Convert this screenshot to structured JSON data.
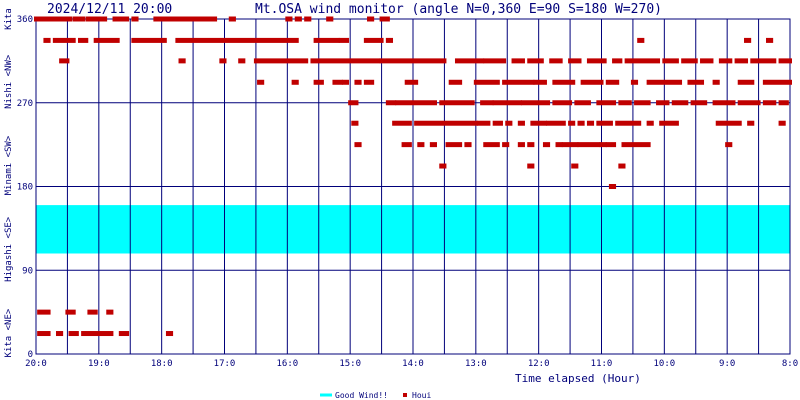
{
  "chart_data": {
    "type": "scatter",
    "timestamp": "2024/12/11 20:00",
    "title": "Mt.OSA wind monitor (angle N=0,360 E=90 S=180 W=270)",
    "xlabel": "Time elapsed (Hour)",
    "xlim": [
      0,
      12
    ],
    "ylim": [
      0,
      360
    ],
    "grid": true,
    "x_ticks": [
      {
        "value": 0,
        "label": "20:0"
      },
      {
        "value": 1,
        "label": "19:0"
      },
      {
        "value": 2,
        "label": "18:0"
      },
      {
        "value": 3,
        "label": "17:0"
      },
      {
        "value": 4,
        "label": "16:0"
      },
      {
        "value": 5,
        "label": "15:0"
      },
      {
        "value": 6,
        "label": "14:0"
      },
      {
        "value": 7,
        "label": "13:0"
      },
      {
        "value": 8,
        "label": "12:0"
      },
      {
        "value": 9,
        "label": "11:0"
      },
      {
        "value": 10,
        "label": "10:0"
      },
      {
        "value": 11,
        "label": "9:0"
      },
      {
        "value": 12,
        "label": "8:0"
      }
    ],
    "y_ticks": [
      {
        "value": 0,
        "label": "0"
      },
      {
        "value": 90,
        "label": "90"
      },
      {
        "value": 180,
        "label": "180"
      },
      {
        "value": 270,
        "label": "270"
      },
      {
        "value": 360,
        "label": "360"
      }
    ],
    "y_direction_labels": [
      {
        "value": 22.5,
        "label": "Kita <NE>"
      },
      {
        "value": 112.5,
        "label": "Higashi <SE>"
      },
      {
        "value": 202.5,
        "label": "Minami <SW>"
      },
      {
        "value": 292.5,
        "label": "Nishi <NW>"
      },
      {
        "value": 360,
        "label": "Kita"
      }
    ],
    "good_wind_band": {
      "name": "Good Wind!!",
      "from": 108,
      "to": 160,
      "color": "#00ffff"
    },
    "legend": {
      "placement": "bottom-center",
      "entries": [
        {
          "label": "Good Wind!!",
          "color": "#00ffff",
          "marker": "line"
        },
        {
          "label": "Houi",
          "color": "#c00000",
          "marker": "square"
        }
      ]
    },
    "colors": {
      "frame": "#00007a",
      "grid": "#00007a",
      "points": "#c00000",
      "text": "#00007a"
    },
    "series": [
      {
        "name": "Houi",
        "segments": [
          {
            "x": [
              0.0,
              0.55
            ],
            "y": 360
          },
          {
            "x": [
              0.62,
              0.75
            ],
            "y": 360
          },
          {
            "x": [
              0.82,
              1.1
            ],
            "y": 360
          },
          {
            "x": [
              1.25,
              1.3
            ],
            "y": 360
          },
          {
            "x": [
              1.35,
              1.45
            ],
            "y": 360
          },
          {
            "x": [
              1.55,
              1.6
            ],
            "y": 360
          },
          {
            "x": [
              1.9,
              2.85
            ],
            "y": 360
          },
          {
            "x": [
              3.1,
              3.15
            ],
            "y": 360
          },
          {
            "x": [
              4.0,
              4.05
            ],
            "y": 360
          },
          {
            "x": [
              4.15,
              4.2
            ],
            "y": 360
          },
          {
            "x": [
              4.3,
              4.35
            ],
            "y": 360
          },
          {
            "x": [
              4.65,
              4.7
            ],
            "y": 360
          },
          {
            "x": [
              5.3,
              5.35
            ],
            "y": 360
          },
          {
            "x": [
              5.5,
              5.6
            ],
            "y": 360
          },
          {
            "x": [
              0.15,
              0.2
            ],
            "y": 337
          },
          {
            "x": [
              0.3,
              0.6
            ],
            "y": 337
          },
          {
            "x": [
              0.7,
              0.8
            ],
            "y": 337
          },
          {
            "x": [
              0.95,
              1.3
            ],
            "y": 337
          },
          {
            "x": [
              1.55,
              2.05
            ],
            "y": 337
          },
          {
            "x": [
              2.25,
              4.15
            ],
            "y": 337
          },
          {
            "x": [
              4.45,
              4.8
            ],
            "y": 337
          },
          {
            "x": [
              4.85,
              4.95
            ],
            "y": 337
          },
          {
            "x": [
              5.25,
              5.5
            ],
            "y": 337
          },
          {
            "x": [
              5.6,
              5.65
            ],
            "y": 337
          },
          {
            "x": [
              9.6,
              9.65
            ],
            "y": 337
          },
          {
            "x": [
              11.3,
              11.35
            ],
            "y": 337
          },
          {
            "x": [
              11.65,
              11.7
            ],
            "y": 337
          },
          {
            "x": [
              0.4,
              0.5
            ],
            "y": 315
          },
          {
            "x": [
              2.3,
              2.35
            ],
            "y": 315
          },
          {
            "x": [
              2.95,
              3.0
            ],
            "y": 315
          },
          {
            "x": [
              3.25,
              3.3
            ],
            "y": 315
          },
          {
            "x": [
              3.5,
              4.3
            ],
            "y": 315
          },
          {
            "x": [
              4.4,
              5.45
            ],
            "y": 315
          },
          {
            "x": [
              5.5,
              6.5
            ],
            "y": 315
          },
          {
            "x": [
              6.7,
              7.1
            ],
            "y": 315
          },
          {
            "x": [
              7.15,
              7.45
            ],
            "y": 315
          },
          {
            "x": [
              7.6,
              7.75
            ],
            "y": 315
          },
          {
            "x": [
              7.85,
              8.05
            ],
            "y": 315
          },
          {
            "x": [
              8.2,
              8.35
            ],
            "y": 315
          },
          {
            "x": [
              8.5,
              8.65
            ],
            "y": 315
          },
          {
            "x": [
              8.8,
              9.05
            ],
            "y": 315
          },
          {
            "x": [
              9.2,
              9.3
            ],
            "y": 315
          },
          {
            "x": [
              9.4,
              9.9
            ],
            "y": 315
          },
          {
            "x": [
              10.0,
              10.2
            ],
            "y": 315
          },
          {
            "x": [
              10.3,
              10.5
            ],
            "y": 315
          },
          {
            "x": [
              10.6,
              10.75
            ],
            "y": 315
          },
          {
            "x": [
              10.9,
              11.05
            ],
            "y": 315
          },
          {
            "x": [
              11.15,
              11.3
            ],
            "y": 315
          },
          {
            "x": [
              11.4,
              11.75
            ],
            "y": 315
          },
          {
            "x": [
              11.85,
              12.0
            ],
            "y": 315
          },
          {
            "x": [
              3.55,
              3.6
            ],
            "y": 292
          },
          {
            "x": [
              4.1,
              4.15
            ],
            "y": 292
          },
          {
            "x": [
              4.45,
              4.55
            ],
            "y": 292
          },
          {
            "x": [
              4.75,
              4.85
            ],
            "y": 292
          },
          {
            "x": [
              4.9,
              4.95
            ],
            "y": 292
          },
          {
            "x": [
              5.1,
              5.15
            ],
            "y": 292
          },
          {
            "x": [
              5.25,
              5.35
            ],
            "y": 292
          },
          {
            "x": [
              5.9,
              6.05
            ],
            "y": 292
          },
          {
            "x": [
              6.6,
              6.75
            ],
            "y": 292
          },
          {
            "x": [
              7.0,
              7.35
            ],
            "y": 292
          },
          {
            "x": [
              7.45,
              7.9
            ],
            "y": 292
          },
          {
            "x": [
              7.95,
              8.1
            ],
            "y": 292
          },
          {
            "x": [
              8.25,
              8.55
            ],
            "y": 292
          },
          {
            "x": [
              8.7,
              9.0
            ],
            "y": 292
          },
          {
            "x": [
              9.1,
              9.25
            ],
            "y": 292
          },
          {
            "x": [
              9.5,
              9.55
            ],
            "y": 292
          },
          {
            "x": [
              9.75,
              10.25
            ],
            "y": 292
          },
          {
            "x": [
              10.4,
              10.6
            ],
            "y": 292
          },
          {
            "x": [
              10.8,
              10.85
            ],
            "y": 292
          },
          {
            "x": [
              11.2,
              11.4
            ],
            "y": 292
          },
          {
            "x": [
              11.6,
              12.0
            ],
            "y": 292
          },
          {
            "x": [
              5.0,
              5.1
            ],
            "y": 270
          },
          {
            "x": [
              5.6,
              5.7
            ],
            "y": 270
          },
          {
            "x": [
              5.75,
              6.35
            ],
            "y": 270
          },
          {
            "x": [
              6.45,
              6.95
            ],
            "y": 270
          },
          {
            "x": [
              7.1,
              7.25
            ],
            "y": 270
          },
          {
            "x": [
              7.3,
              7.7
            ],
            "y": 270
          },
          {
            "x": [
              7.75,
              8.15
            ],
            "y": 270
          },
          {
            "x": [
              8.25,
              8.5
            ],
            "y": 270
          },
          {
            "x": [
              8.6,
              8.8
            ],
            "y": 270
          },
          {
            "x": [
              8.95,
              9.2
            ],
            "y": 270
          },
          {
            "x": [
              9.3,
              9.45
            ],
            "y": 270
          },
          {
            "x": [
              9.55,
              9.75
            ],
            "y": 270
          },
          {
            "x": [
              9.9,
              10.05
            ],
            "y": 270
          },
          {
            "x": [
              10.15,
              10.35
            ],
            "y": 270
          },
          {
            "x": [
              10.45,
              10.65
            ],
            "y": 270
          },
          {
            "x": [
              10.8,
              11.1
            ],
            "y": 270
          },
          {
            "x": [
              11.2,
              11.5
            ],
            "y": 270
          },
          {
            "x": [
              11.6,
              11.75
            ],
            "y": 270
          },
          {
            "x": [
              11.85,
              11.95
            ],
            "y": 270
          },
          {
            "x": [
              5.05,
              5.1
            ],
            "y": 248
          },
          {
            "x": [
              5.7,
              5.95
            ],
            "y": 248
          },
          {
            "x": [
              6.05,
              7.0
            ],
            "y": 248
          },
          {
            "x": [
              7.05,
              7.2
            ],
            "y": 248
          },
          {
            "x": [
              7.3,
              7.4
            ],
            "y": 248
          },
          {
            "x": [
              7.5,
              7.55
            ],
            "y": 248
          },
          {
            "x": [
              7.7,
              7.75
            ],
            "y": 248
          },
          {
            "x": [
              7.9,
              8.1
            ],
            "y": 248
          },
          {
            "x": [
              8.15,
              8.4
            ],
            "y": 248
          },
          {
            "x": [
              8.5,
              8.55
            ],
            "y": 248
          },
          {
            "x": [
              8.65,
              8.7
            ],
            "y": 248
          },
          {
            "x": [
              8.8,
              8.85
            ],
            "y": 248
          },
          {
            "x": [
              8.95,
              9.15
            ],
            "y": 248
          },
          {
            "x": [
              9.25,
              9.6
            ],
            "y": 248
          },
          {
            "x": [
              9.75,
              9.8
            ],
            "y": 248
          },
          {
            "x": [
              9.95,
              10.2
            ],
            "y": 248
          },
          {
            "x": [
              10.85,
              11.2
            ],
            "y": 248
          },
          {
            "x": [
              11.35,
              11.4
            ],
            "y": 248
          },
          {
            "x": [
              11.85,
              11.9
            ],
            "y": 248
          },
          {
            "x": [
              5.1,
              5.15
            ],
            "y": 225
          },
          {
            "x": [
              5.85,
              5.95
            ],
            "y": 225
          },
          {
            "x": [
              6.1,
              6.15
            ],
            "y": 225
          },
          {
            "x": [
              6.3,
              6.35
            ],
            "y": 225
          },
          {
            "x": [
              6.55,
              6.75
            ],
            "y": 225
          },
          {
            "x": [
              6.85,
              6.9
            ],
            "y": 225
          },
          {
            "x": [
              7.15,
              7.35
            ],
            "y": 225
          },
          {
            "x": [
              7.45,
              7.5
            ],
            "y": 225
          },
          {
            "x": [
              7.7,
              7.75
            ],
            "y": 225
          },
          {
            "x": [
              7.85,
              7.9
            ],
            "y": 225
          },
          {
            "x": [
              8.1,
              8.15
            ],
            "y": 225
          },
          {
            "x": [
              8.3,
              8.35
            ],
            "y": 225
          },
          {
            "x": [
              8.4,
              8.6
            ],
            "y": 225
          },
          {
            "x": [
              8.65,
              8.95
            ],
            "y": 225
          },
          {
            "x": [
              9.0,
              9.05
            ],
            "y": 225
          },
          {
            "x": [
              9.1,
              9.2
            ],
            "y": 225
          },
          {
            "x": [
              9.35,
              9.75
            ],
            "y": 225
          },
          {
            "x": [
              11.0,
              11.05
            ],
            "y": 225
          },
          {
            "x": [
              6.45,
              6.5
            ],
            "y": 202
          },
          {
            "x": [
              7.85,
              7.9
            ],
            "y": 202
          },
          {
            "x": [
              8.55,
              8.6
            ],
            "y": 202
          },
          {
            "x": [
              9.3,
              9.35
            ],
            "y": 202
          },
          {
            "x": [
              9.15,
              9.2
            ],
            "y": 180
          },
          {
            "x": [
              0.05,
              0.2
            ],
            "y": 45
          },
          {
            "x": [
              0.5,
              0.6
            ],
            "y": 45
          },
          {
            "x": [
              0.85,
              0.95
            ],
            "y": 45
          },
          {
            "x": [
              1.15,
              1.2
            ],
            "y": 45
          },
          {
            "x": [
              0.05,
              0.2
            ],
            "y": 22
          },
          {
            "x": [
              0.35,
              0.4
            ],
            "y": 22
          },
          {
            "x": [
              0.55,
              0.65
            ],
            "y": 22
          },
          {
            "x": [
              0.75,
              1.2
            ],
            "y": 22
          },
          {
            "x": [
              1.35,
              1.45
            ],
            "y": 22
          },
          {
            "x": [
              2.1,
              2.15
            ],
            "y": 22
          }
        ]
      }
    ]
  }
}
